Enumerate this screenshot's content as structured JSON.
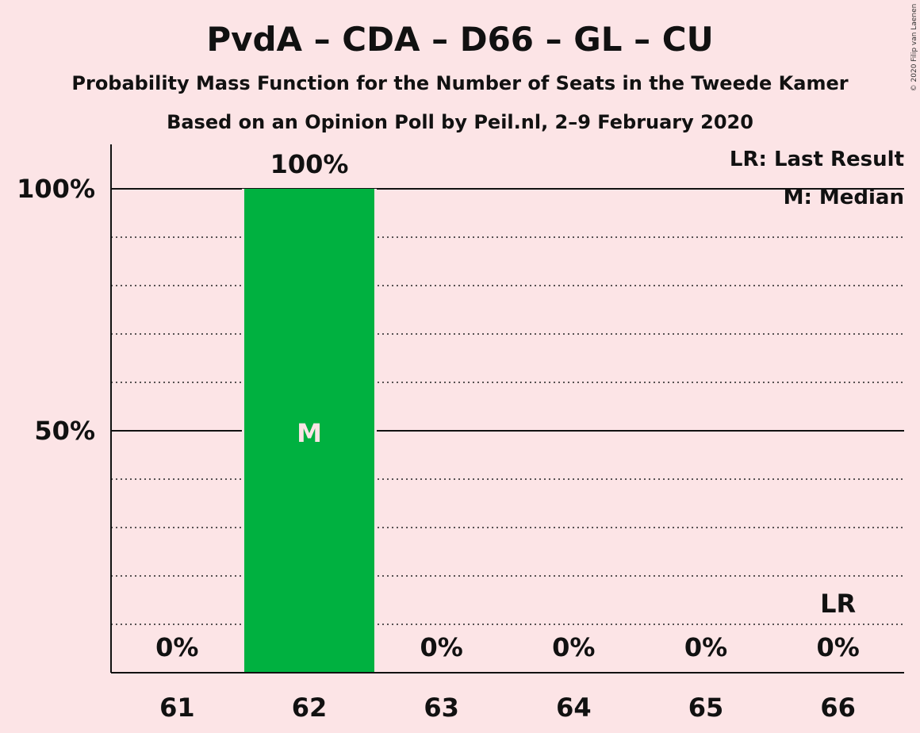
{
  "chart_data": {
    "type": "bar",
    "title": "PvdA – CDA – D66 – GL – CU",
    "subtitle": "Probability Mass Function for the Number of Seats in the Tweede Kamer",
    "subtitle2": "Based on an Opinion Poll by Peil.nl, 2–9 February 2020",
    "categories": [
      "61",
      "62",
      "63",
      "64",
      "65",
      "66"
    ],
    "values": [
      0,
      100,
      0,
      0,
      0,
      0
    ],
    "value_labels": [
      "0%",
      "100%",
      "0%",
      "0%",
      "0%",
      "0%"
    ],
    "ylim": [
      0,
      100
    ],
    "y_ticks": [
      {
        "value": 50,
        "label": "50%"
      },
      {
        "value": 100,
        "label": "100%"
      }
    ],
    "minor_gridlines": [
      10,
      20,
      30,
      40,
      60,
      70,
      80,
      90
    ],
    "median_category": "62",
    "median_marker": "M",
    "last_result_category": "66",
    "last_result_marker": "LR",
    "legend": [
      "LR: Last Result",
      "M: Median"
    ],
    "bar_color": "#00B140",
    "copyright": "© 2020 Filip van Laenen"
  }
}
